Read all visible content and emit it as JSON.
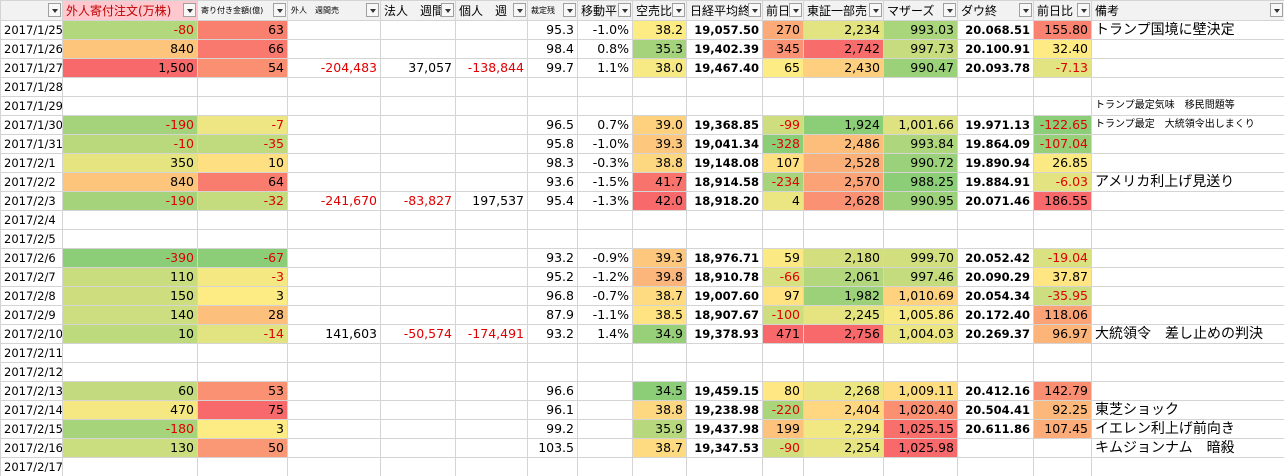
{
  "header": [
    "",
    "外人寄付注文(万株)",
    "寄り付き金額(億)",
    "外人　週間売",
    "法人　週間",
    "個人　週",
    "裁定残",
    "移動平",
    "空売比",
    "日経平均終",
    "前日比",
    "東証一部売",
    "マザーズ",
    "ダウ終",
    "前日比",
    "備考"
  ],
  "rows": [
    [
      "2017/1/25",
      "-80",
      "63",
      null,
      null,
      null,
      "95.3",
      "-1.0%",
      "38.2",
      "19,057.50",
      "270",
      "2,234",
      "993.03",
      "20.068.51",
      "155.80",
      "トランプ国境に壁決定"
    ],
    [
      "2017/1/26",
      "840",
      "66",
      null,
      null,
      null,
      "98.4",
      "0.8%",
      "35.3",
      "19,402.39",
      "345",
      "2,742",
      "997.73",
      "20.100.91",
      "32.40",
      null
    ],
    [
      "2017/1/27",
      "1,500",
      "54",
      "-204,483",
      "37,057",
      "-138,844",
      "99.7",
      "1.1%",
      "38.0",
      "19,467.40",
      "65",
      "2,430",
      "990.47",
      "20.093.78",
      "-7.13",
      null
    ],
    [
      "2017/1/28",
      null,
      null,
      null,
      null,
      null,
      null,
      null,
      null,
      null,
      null,
      null,
      null,
      null,
      null,
      null
    ],
    [
      "2017/1/29",
      null,
      null,
      null,
      null,
      null,
      null,
      null,
      null,
      null,
      null,
      null,
      null,
      null,
      null,
      "トランプ最定気味　移民問題等"
    ],
    [
      "2017/1/30",
      "-190",
      "-7",
      null,
      null,
      null,
      "96.5",
      "0.7%",
      "39.0",
      "19,368.85",
      "-99",
      "1,924",
      "1,001.66",
      "19.971.13",
      "-122.65",
      "トランプ最定　大統領令出しまくり"
    ],
    [
      "2017/1/31",
      "-10",
      "-35",
      null,
      null,
      null,
      "95.8",
      "-1.0%",
      "39.3",
      "19,041.34",
      "-328",
      "2,486",
      "993.84",
      "19.864.09",
      "-107.04",
      null
    ],
    [
      "2017/2/1",
      "350",
      "10",
      null,
      null,
      null,
      "98.3",
      "-0.3%",
      "38.8",
      "19,148.08",
      "107",
      "2,528",
      "990.72",
      "19.890.94",
      "26.85",
      null
    ],
    [
      "2017/2/2",
      "840",
      "64",
      null,
      null,
      null,
      "93.6",
      "-1.5%",
      "41.7",
      "18,914.58",
      "-234",
      "2,570",
      "988.25",
      "19.884.91",
      "-6.03",
      "アメリカ利上げ見送り"
    ],
    [
      "2017/2/3",
      "-190",
      "-32",
      "-241,670",
      "-83,827",
      "197,537",
      "95.4",
      "-1.3%",
      "42.0",
      "18,918.20",
      "4",
      "2,628",
      "990.95",
      "20.071.46",
      "186.55",
      null
    ],
    [
      "2017/2/4",
      null,
      null,
      null,
      null,
      null,
      null,
      null,
      null,
      null,
      null,
      null,
      null,
      null,
      null,
      null
    ],
    [
      "2017/2/5",
      null,
      null,
      null,
      null,
      null,
      null,
      null,
      null,
      null,
      null,
      null,
      null,
      null,
      null,
      null
    ],
    [
      "2017/2/6",
      "-390",
      "-67",
      null,
      null,
      null,
      "93.2",
      "-0.9%",
      "39.3",
      "18,976.71",
      "59",
      "2,180",
      "999.70",
      "20.052.42",
      "-19.04",
      null
    ],
    [
      "2017/2/7",
      "110",
      "-3",
      null,
      null,
      null,
      "95.2",
      "-1.2%",
      "39.8",
      "18,910.78",
      "-66",
      "2,061",
      "997.46",
      "20.090.29",
      "37.87",
      null
    ],
    [
      "2017/2/8",
      "150",
      "3",
      null,
      null,
      null,
      "96.8",
      "-0.7%",
      "38.7",
      "19,007.60",
      "97",
      "1,982",
      "1,010.69",
      "20.054.34",
      "-35.95",
      null
    ],
    [
      "2017/2/9",
      "140",
      "28",
      null,
      null,
      null,
      "87.9",
      "-1.1%",
      "38.5",
      "18,907.67",
      "-100",
      "2,245",
      "1,005.86",
      "20.172.40",
      "118.06",
      null
    ],
    [
      "2017/2/10",
      "10",
      "-14",
      "141,603",
      "-50,574",
      "-174,491",
      "93.2",
      "1.4%",
      "34.9",
      "19,378.93",
      "471",
      "2,756",
      "1,004.03",
      "20.269.37",
      "96.97",
      "大統領令　差し止めの判決"
    ],
    [
      "2017/2/11",
      null,
      null,
      null,
      null,
      null,
      null,
      null,
      null,
      null,
      null,
      null,
      null,
      null,
      null,
      null
    ],
    [
      "2017/2/12",
      null,
      null,
      null,
      null,
      null,
      null,
      null,
      null,
      null,
      null,
      null,
      null,
      null,
      null,
      null
    ],
    [
      "2017/2/13",
      "60",
      "53",
      null,
      null,
      null,
      "96.6",
      null,
      "34.5",
      "19,459.15",
      "80",
      "2,268",
      "1,009.11",
      "20.412.16",
      "142.79",
      null
    ],
    [
      "2017/2/14",
      "470",
      "75",
      null,
      null,
      null,
      "96.1",
      null,
      "38.8",
      "19,238.98",
      "-220",
      "2,404",
      "1,020.40",
      "20.504.41",
      "92.25",
      "東芝ショック"
    ],
    [
      "2017/2/15",
      "-180",
      "3",
      null,
      null,
      null,
      "99.2",
      null,
      "35.9",
      "19,437.98",
      "199",
      "2,294",
      "1,025.15",
      "20.611.86",
      "107.45",
      "イエレン利上げ前向き"
    ],
    [
      "2017/2/16",
      "130",
      "50",
      null,
      null,
      null,
      "103.5",
      null,
      "38.7",
      "19,347.53",
      "-90",
      "2,254",
      "1,025.98",
      null,
      null,
      "キムジョンナム　暗殺"
    ],
    [
      "2017/2/17",
      null,
      null,
      null,
      null,
      null,
      null,
      null,
      null,
      null,
      null,
      null,
      null,
      null,
      null,
      null
    ]
  ]
}
